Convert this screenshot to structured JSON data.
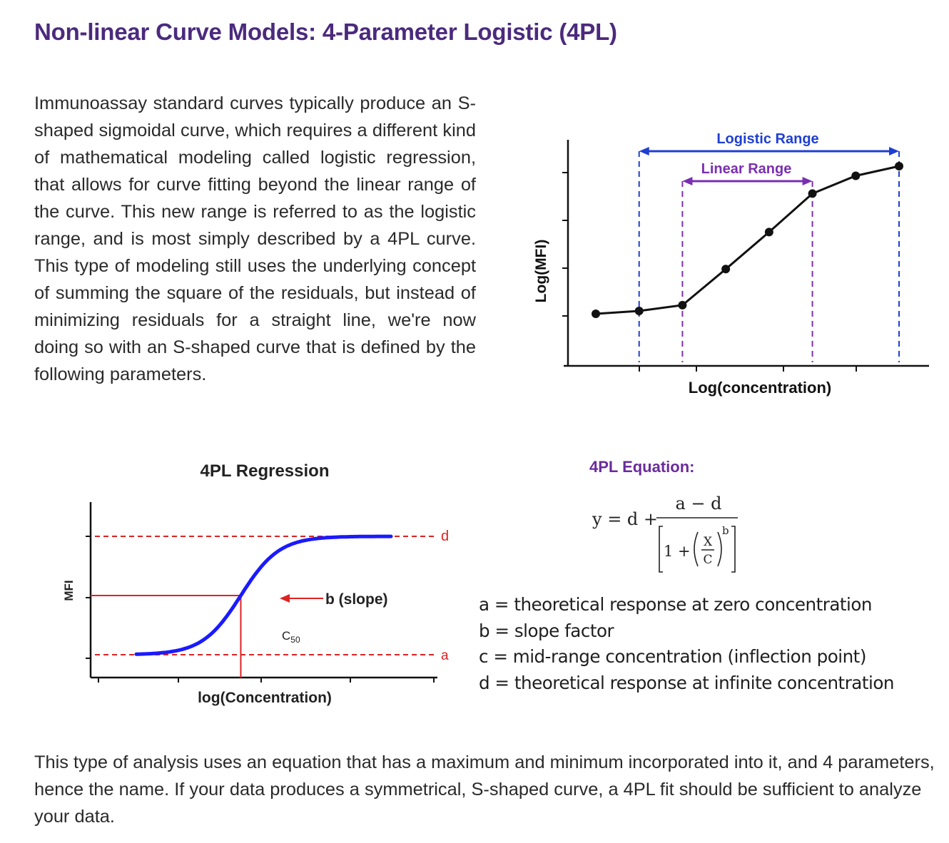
{
  "page": {
    "title": "Non-linear Curve Models: 4-Parameter Logistic (4PL)",
    "intro": "Immunoassay standard curves typically produce an S-shaped sigmoidal curve, which requires a different kind of mathematical modeling called logistic regression, that allows for curve fitting beyond the linear range of the curve. This new range is referred to as the logistic range, and is most simply described by a 4PL curve. This type of modeling still uses the underlying concept of summing the square of the residuals, but instead of minimizing residuals for a straight line, we're now doing so with an S-shaped curve that is defined by the following parameters.",
    "outro": "This type of analysis uses an equation that has a maximum and minimum incorporated into it, and 4 parameters, hence the name. If your data produces a symmetrical, S-shaped curve, a 4PL fit should be sufficient to analyze your data."
  },
  "chart_data": [
    {
      "type": "line",
      "xlabel": "Log(concentration)",
      "ylabel": "Log(MFI)",
      "annotations": [
        "Logistic Range",
        "Linear Range"
      ],
      "points": [
        {
          "x": 1,
          "y": 1.0
        },
        {
          "x": 2,
          "y": 1.06
        },
        {
          "x": 3,
          "y": 1.18
        },
        {
          "x": 4,
          "y": 1.93
        },
        {
          "x": 5,
          "y": 2.7
        },
        {
          "x": 6,
          "y": 3.5
        },
        {
          "x": 7,
          "y": 3.87
        },
        {
          "x": 8,
          "y": 4.07
        }
      ],
      "colors": {
        "curve": "#111111",
        "logistic_range": "#1f3fd1",
        "linear_range": "#7a2fb0"
      }
    },
    {
      "type": "line",
      "title": "4PL Regression",
      "xlabel": "log(Concentration)",
      "ylabel": "MFI",
      "annotations": [
        "d",
        "a",
        "b (slope)",
        "c50"
      ],
      "curve_params": {
        "a": 0,
        "d": 1,
        "c": 0,
        "b": 1
      },
      "colors": {
        "curve": "#1a1aff",
        "guides": "#dd2222"
      }
    }
  ],
  "equation": {
    "heading": "4PL Equation:",
    "lhs": "y = d +",
    "numerator": "a − d",
    "denominator_one": "1 +",
    "frac_top": "X",
    "frac_bottom": "C",
    "exponent": "b"
  },
  "parameters": [
    "a = theoretical response at zero concentration",
    "b = slope factor",
    "c = mid-range concentration (inflection point)",
    "d = theoretical response at infinite concentration"
  ]
}
